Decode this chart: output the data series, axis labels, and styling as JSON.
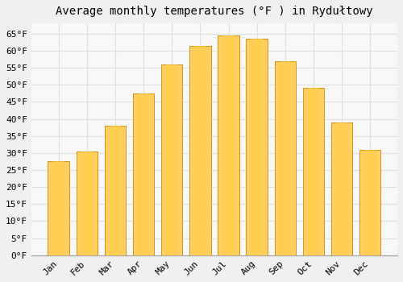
{
  "title": "Average monthly temperatures (°F ) in Rydułtowy",
  "months": [
    "Jan",
    "Feb",
    "Mar",
    "Apr",
    "May",
    "Jun",
    "Jul",
    "Aug",
    "Sep",
    "Oct",
    "Nov",
    "Dec"
  ],
  "values": [
    27.5,
    30.5,
    38.0,
    47.5,
    56.0,
    61.5,
    64.5,
    63.5,
    57.0,
    49.0,
    39.0,
    31.0
  ],
  "bar_color_top": "#FFA500",
  "bar_color_bottom": "#FFD060",
  "bar_edge_color": "#CC8800",
  "background_color": "#f0f0f0",
  "plot_bg_color": "#f8f8f8",
  "grid_color": "#e0e0e0",
  "ylim": [
    0,
    68
  ],
  "ytick_step": 5,
  "title_fontsize": 10,
  "tick_fontsize": 8,
  "font_family": "monospace"
}
